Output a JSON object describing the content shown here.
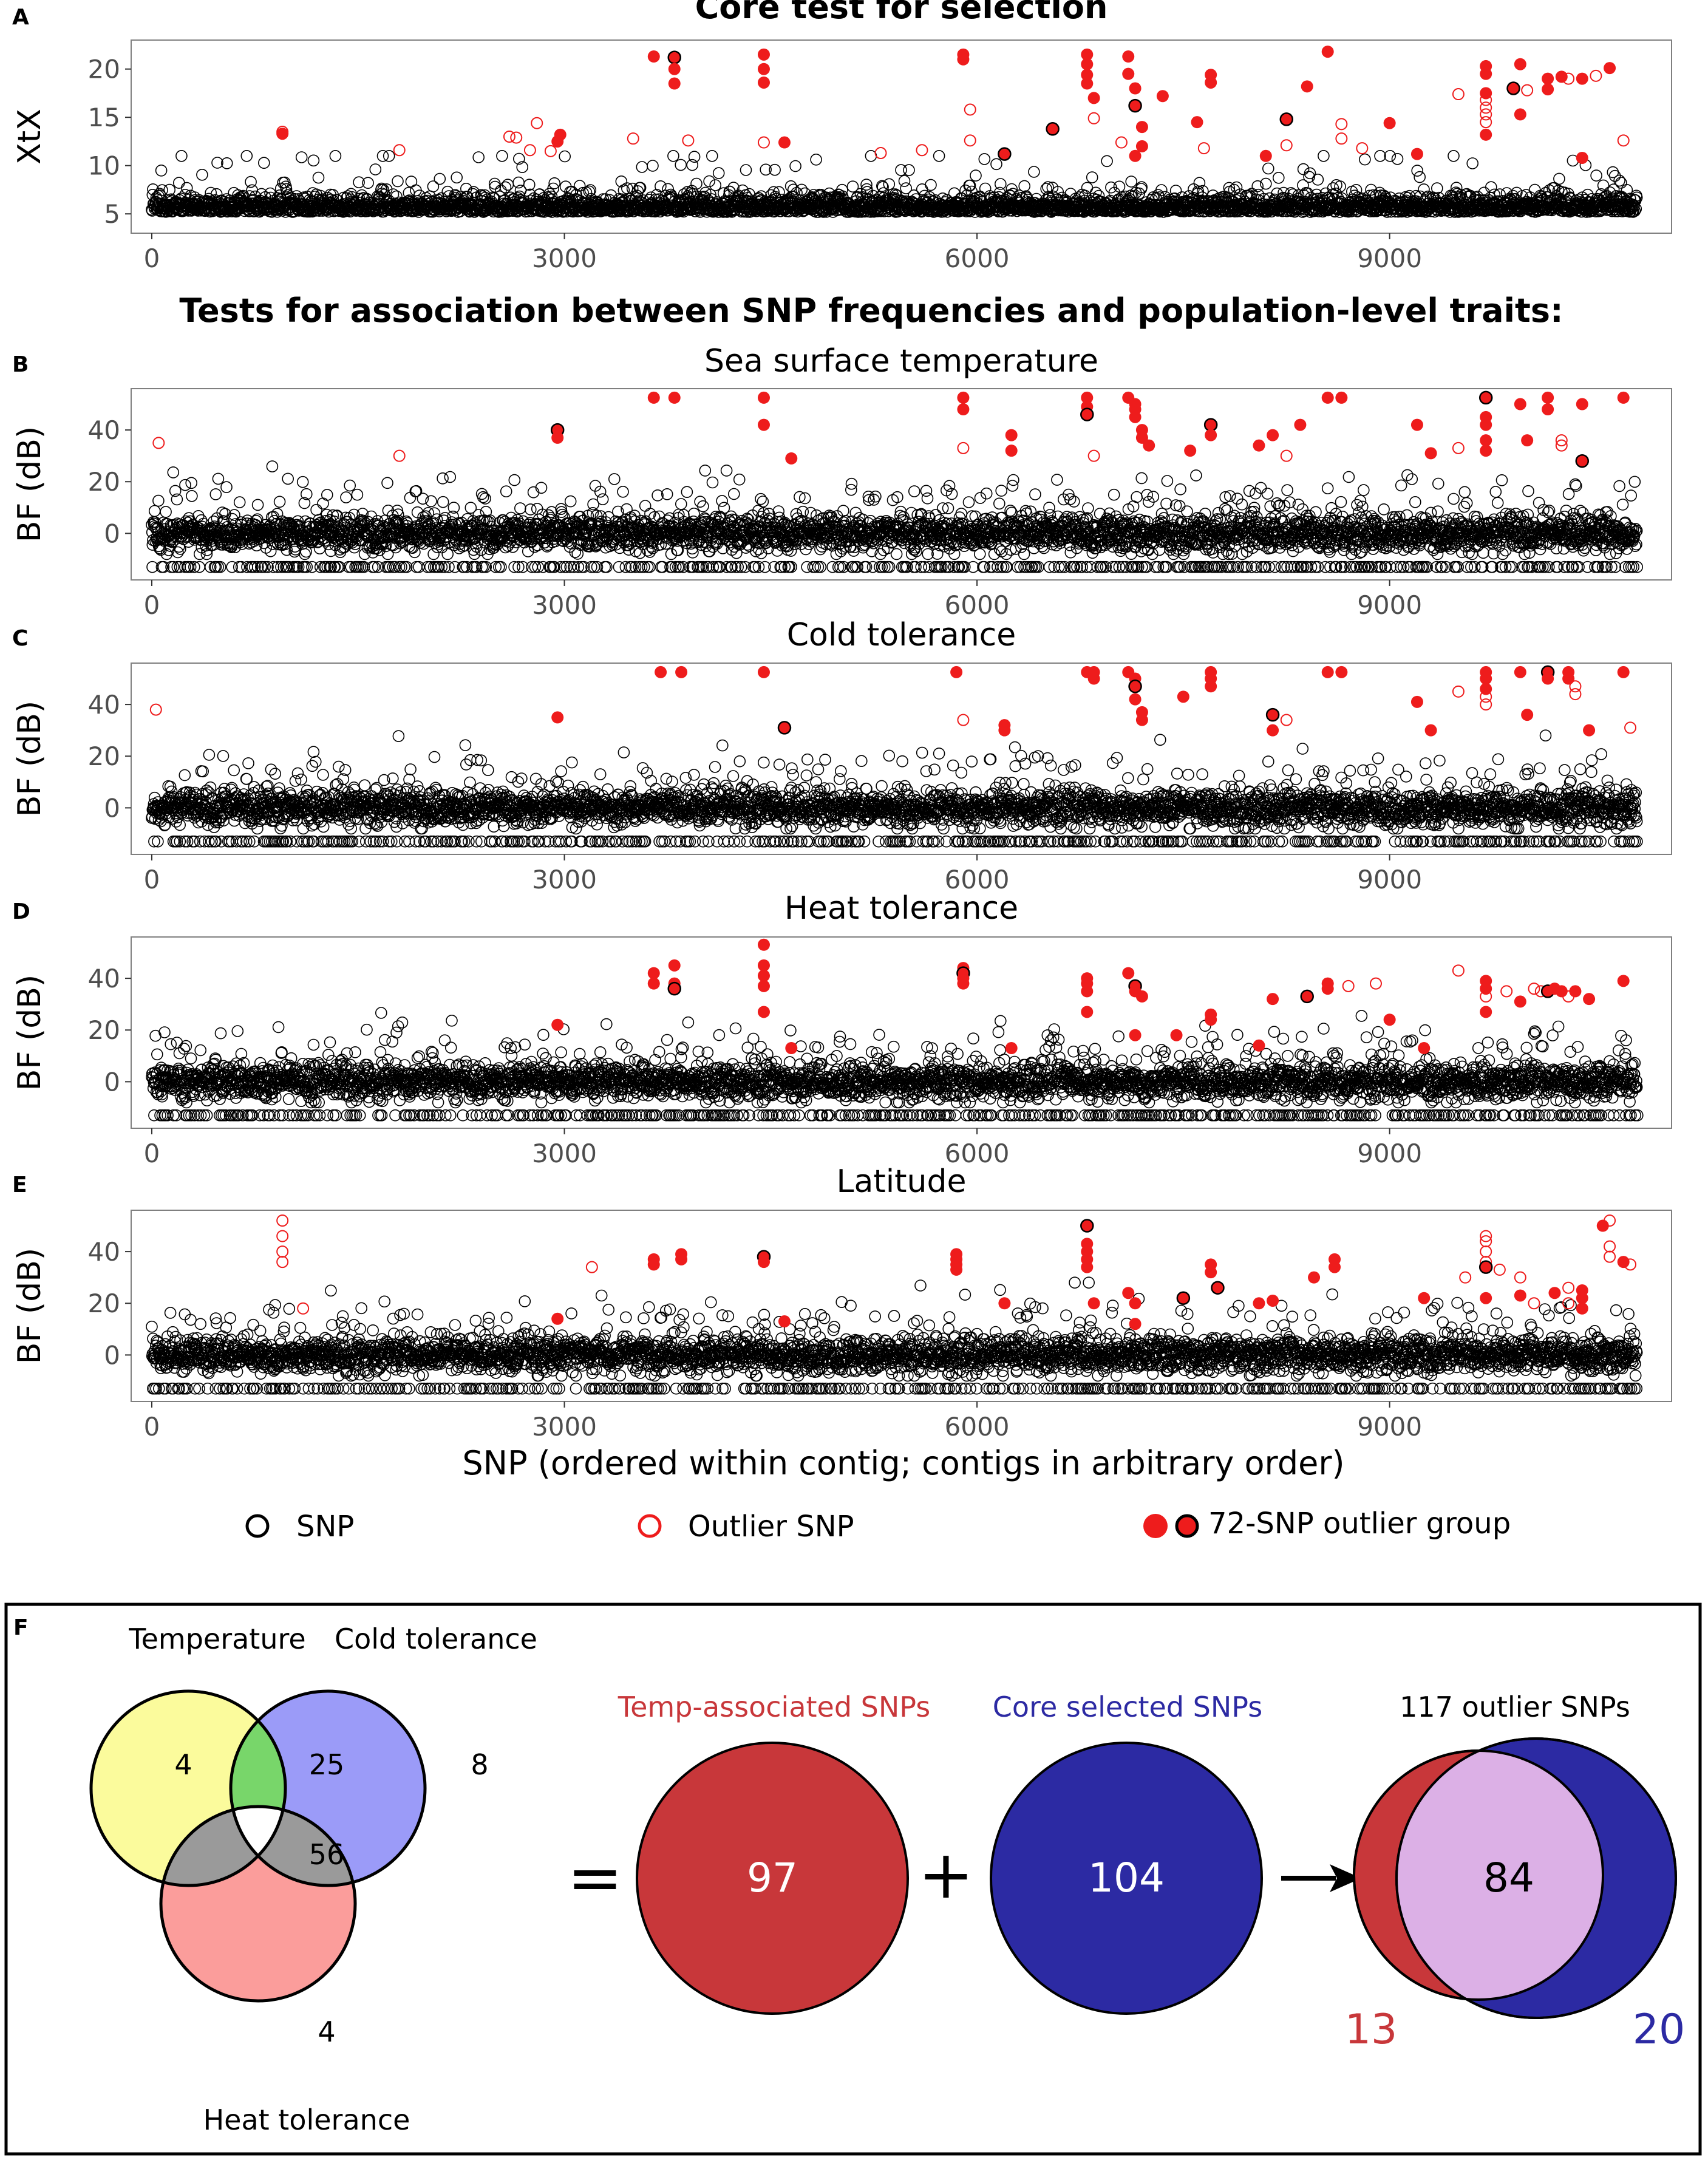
{
  "colors": {
    "outlier": "#ee1c1c",
    "snp": "#000000",
    "temp_red": "#c8373a",
    "core_blue": "#2c2aa3",
    "venn_yellow": "#fbfb9c",
    "venn_blue": "#9b9bf8",
    "venn_red": "#fb9d9b",
    "venn_green": "#78d66a",
    "venn_gray": "#9a9a9a",
    "lilac": "#dcb0e6"
  },
  "section_header": "Tests for association between SNP frequencies and population-level traits:",
  "x_axis_label": "SNP (ordered within contig; contigs in arbitrary order)",
  "legend": {
    "snp": "SNP",
    "outlier": "Outlier SNP",
    "group": "72-SNP outlier group"
  },
  "chart_data": [
    {
      "panel": "A",
      "type": "scatter",
      "title": "Core test for selection",
      "ylabel": "XtX",
      "xlim": [
        -150,
        11050
      ],
      "ylim": [
        3,
        23
      ],
      "xticks": [
        0,
        3000,
        6000,
        9000
      ],
      "yticks": [
        5,
        10,
        15,
        20
      ],
      "n_snps": 10800,
      "baseline": 5.5,
      "noise": 1.1,
      "outliers_filled": [
        [
          950,
          13.3
        ],
        [
          2970,
          13.2
        ],
        [
          2950,
          12.5
        ],
        [
          3650,
          21.3
        ],
        [
          3800,
          21.2
        ],
        [
          3800,
          20
        ],
        [
          3800,
          18.5
        ],
        [
          4450,
          21.5
        ],
        [
          4450,
          20
        ],
        [
          4450,
          18.6
        ],
        [
          4600,
          12.4
        ],
        [
          5900,
          21.5
        ],
        [
          5900,
          21
        ],
        [
          6200,
          11.2
        ],
        [
          6800,
          21.5
        ],
        [
          6800,
          20.5
        ],
        [
          6800,
          19.4
        ],
        [
          6800,
          18.5
        ],
        [
          6850,
          17
        ],
        [
          7100,
          21.3
        ],
        [
          7100,
          19.5
        ],
        [
          7150,
          18
        ],
        [
          7150,
          16.2
        ],
        [
          7200,
          14
        ],
        [
          7200,
          12
        ],
        [
          7150,
          11
        ],
        [
          7350,
          17.2
        ],
        [
          7600,
          14.5
        ],
        [
          7700,
          19.4
        ],
        [
          7700,
          18.6
        ],
        [
          8100,
          11
        ],
        [
          8250,
          14.8
        ],
        [
          8400,
          18.2
        ],
        [
          8550,
          21.8
        ],
        [
          9000,
          14.4
        ],
        [
          9200,
          11.2
        ],
        [
          9700,
          20.3
        ],
        [
          9700,
          19.5
        ],
        [
          9700,
          17.5
        ],
        [
          9700,
          13.2
        ],
        [
          9900,
          18
        ],
        [
          9950,
          15.3
        ],
        [
          9950,
          20.5
        ],
        [
          10150,
          19
        ],
        [
          10150,
          17.9
        ],
        [
          10250,
          19.2
        ],
        [
          10400,
          19
        ],
        [
          10600,
          20.1
        ],
        [
          10400,
          10.8
        ],
        [
          6550,
          13.8
        ]
      ],
      "outliers_open": [
        [
          950,
          13.5
        ],
        [
          1800,
          11.6
        ],
        [
          2600,
          13
        ],
        [
          2650,
          12.9
        ],
        [
          2750,
          11.6
        ],
        [
          2800,
          14.4
        ],
        [
          2900,
          11.5
        ],
        [
          3500,
          12.8
        ],
        [
          3900,
          12.6
        ],
        [
          4450,
          12.4
        ],
        [
          5300,
          11.3
        ],
        [
          5600,
          11.6
        ],
        [
          5950,
          15.8
        ],
        [
          5950,
          12.6
        ],
        [
          6850,
          14.9
        ],
        [
          7050,
          12.4
        ],
        [
          7650,
          11.8
        ],
        [
          8250,
          12.1
        ],
        [
          8650,
          14.3
        ],
        [
          8650,
          12.8
        ],
        [
          8800,
          11.8
        ],
        [
          9500,
          17.4
        ],
        [
          9700,
          16.8
        ],
        [
          9700,
          16
        ],
        [
          9700,
          15.3
        ],
        [
          9700,
          14.5
        ],
        [
          10000,
          17.8
        ],
        [
          10300,
          19
        ],
        [
          10500,
          19.3
        ],
        [
          10700,
          12.6
        ]
      ]
    },
    {
      "panel": "B",
      "type": "scatter",
      "title": "Sea surface temperature",
      "ylabel": "BF (dB)",
      "xlim": [
        -150,
        11050
      ],
      "ylim": [
        -18,
        56
      ],
      "xticks": [
        0,
        3000,
        6000,
        9000
      ],
      "yticks": [
        0,
        20,
        40
      ],
      "n_snps": 10800,
      "baseline": 0,
      "noise": 4,
      "floor": -13,
      "outliers_filled": [
        [
          3650,
          52.5
        ],
        [
          3800,
          52.5
        ],
        [
          4450,
          52.5
        ],
        [
          4450,
          42
        ],
        [
          2950,
          40
        ],
        [
          2950,
          37
        ],
        [
          4650,
          29
        ],
        [
          5900,
          52.5
        ],
        [
          5900,
          48
        ],
        [
          6250,
          38
        ],
        [
          6250,
          32
        ],
        [
          6800,
          52.5
        ],
        [
          6800,
          49
        ],
        [
          6800,
          46
        ],
        [
          7100,
          52.5
        ],
        [
          7150,
          50
        ],
        [
          7150,
          48
        ],
        [
          7150,
          45
        ],
        [
          7200,
          40
        ],
        [
          7200,
          37
        ],
        [
          7250,
          34
        ],
        [
          7550,
          32
        ],
        [
          7700,
          42
        ],
        [
          7700,
          38
        ],
        [
          8050,
          34
        ],
        [
          8150,
          38
        ],
        [
          8350,
          42
        ],
        [
          8550,
          52.5
        ],
        [
          8650,
          52.5
        ],
        [
          9200,
          42
        ],
        [
          9300,
          31
        ],
        [
          9700,
          52.5
        ],
        [
          9700,
          45
        ],
        [
          9700,
          42
        ],
        [
          9700,
          36
        ],
        [
          9700,
          32
        ],
        [
          9950,
          50
        ],
        [
          10150,
          52.5
        ],
        [
          10150,
          48
        ],
        [
          10000,
          36
        ],
        [
          10400,
          28
        ],
        [
          10400,
          50
        ],
        [
          10700,
          52.5
        ]
      ],
      "outliers_open": [
        [
          50,
          35
        ],
        [
          1800,
          30
        ],
        [
          5900,
          33
        ],
        [
          6850,
          30
        ],
        [
          8250,
          30
        ],
        [
          9500,
          33
        ],
        [
          10250,
          34
        ],
        [
          10250,
          36
        ]
      ]
    },
    {
      "panel": "C",
      "type": "scatter",
      "title": "Cold tolerance",
      "ylabel": "BF (dB)",
      "xlim": [
        -150,
        11050
      ],
      "ylim": [
        -18,
        56
      ],
      "xticks": [
        0,
        3000,
        6000,
        9000
      ],
      "yticks": [
        0,
        20,
        40
      ],
      "n_snps": 10800,
      "baseline": 0,
      "noise": 4,
      "floor": -13,
      "outliers_filled": [
        [
          3700,
          52.5
        ],
        [
          3850,
          52.5
        ],
        [
          4450,
          52.5
        ],
        [
          2950,
          35
        ],
        [
          4600,
          31
        ],
        [
          5850,
          52.5
        ],
        [
          6200,
          32
        ],
        [
          6200,
          30
        ],
        [
          6800,
          52.5
        ],
        [
          6850,
          52.5
        ],
        [
          6850,
          50
        ],
        [
          7100,
          52.5
        ],
        [
          7150,
          50
        ],
        [
          7150,
          47
        ],
        [
          7150,
          42
        ],
        [
          7200,
          37
        ],
        [
          7200,
          34
        ],
        [
          7500,
          43
        ],
        [
          7700,
          52.5
        ],
        [
          7700,
          50
        ],
        [
          7700,
          47
        ],
        [
          8150,
          30
        ],
        [
          8150,
          36
        ],
        [
          8550,
          52.5
        ],
        [
          8650,
          52.5
        ],
        [
          9200,
          41
        ],
        [
          9300,
          30
        ],
        [
          9700,
          52.5
        ],
        [
          9700,
          50
        ],
        [
          9700,
          46
        ],
        [
          9950,
          52.5
        ],
        [
          10150,
          52.5
        ],
        [
          10150,
          50
        ],
        [
          10000,
          36
        ],
        [
          10300,
          52.5
        ],
        [
          10300,
          50
        ],
        [
          10450,
          30
        ],
        [
          10700,
          52.5
        ]
      ],
      "outliers_open": [
        [
          30,
          38
        ],
        [
          5900,
          34
        ],
        [
          8250,
          34
        ],
        [
          9500,
          45
        ],
        [
          9700,
          43
        ],
        [
          9700,
          40
        ],
        [
          10350,
          44
        ],
        [
          10350,
          47
        ],
        [
          10750,
          31
        ]
      ]
    },
    {
      "panel": "D",
      "type": "scatter",
      "title": "Heat tolerance",
      "ylabel": "BF (dB)",
      "xlim": [
        -150,
        11050
      ],
      "ylim": [
        -18,
        56
      ],
      "xticks": [
        0,
        3000,
        6000,
        9000
      ],
      "yticks": [
        0,
        20,
        40
      ],
      "n_snps": 10800,
      "baseline": 0,
      "noise": 4,
      "floor": -13,
      "outliers_filled": [
        [
          3650,
          42
        ],
        [
          3650,
          38
        ],
        [
          3800,
          45
        ],
        [
          3800,
          38
        ],
        [
          3800,
          36
        ],
        [
          2950,
          22
        ],
        [
          4450,
          53
        ],
        [
          4450,
          45
        ],
        [
          4450,
          41
        ],
        [
          4450,
          37
        ],
        [
          4450,
          27
        ],
        [
          4650,
          13
        ],
        [
          5900,
          44
        ],
        [
          5900,
          42
        ],
        [
          5900,
          40
        ],
        [
          5900,
          38
        ],
        [
          6250,
          13
        ],
        [
          6800,
          40
        ],
        [
          6800,
          38
        ],
        [
          6800,
          35
        ],
        [
          6800,
          27
        ],
        [
          7100,
          42
        ],
        [
          7150,
          37
        ],
        [
          7150,
          35
        ],
        [
          7200,
          33
        ],
        [
          7150,
          18
        ],
        [
          7450,
          18
        ],
        [
          7700,
          26
        ],
        [
          7700,
          24
        ],
        [
          8050,
          14
        ],
        [
          8150,
          32
        ],
        [
          8400,
          33
        ],
        [
          8550,
          38
        ],
        [
          8550,
          36
        ],
        [
          9000,
          24
        ],
        [
          9250,
          13
        ],
        [
          9700,
          39
        ],
        [
          9700,
          36
        ],
        [
          9700,
          27
        ],
        [
          9950,
          31
        ],
        [
          10150,
          35
        ],
        [
          10200,
          36
        ],
        [
          10250,
          35
        ],
        [
          10350,
          35
        ],
        [
          10450,
          32
        ],
        [
          10700,
          39
        ]
      ],
      "outliers_open": [
        [
          8700,
          37
        ],
        [
          8900,
          38
        ],
        [
          9500,
          43
        ],
        [
          9700,
          33
        ],
        [
          9850,
          35
        ],
        [
          10050,
          36
        ],
        [
          10100,
          35
        ],
        [
          10300,
          33
        ]
      ]
    },
    {
      "panel": "E",
      "type": "scatter",
      "title": "Latitude",
      "ylabel": "BF (dB)",
      "xlim": [
        -150,
        11050
      ],
      "ylim": [
        -18,
        56
      ],
      "xticks": [
        0,
        3000,
        6000,
        9000
      ],
      "yticks": [
        0,
        20,
        40
      ],
      "n_snps": 10800,
      "baseline": 0,
      "noise": 4,
      "floor": -13,
      "outliers_filled": [
        [
          3650,
          37
        ],
        [
          3650,
          35
        ],
        [
          3850,
          39
        ],
        [
          3850,
          37
        ],
        [
          4450,
          38
        ],
        [
          4450,
          36
        ],
        [
          4600,
          13
        ],
        [
          2950,
          14
        ],
        [
          5850,
          39
        ],
        [
          5850,
          37
        ],
        [
          5850,
          35
        ],
        [
          5850,
          33
        ],
        [
          6200,
          20
        ],
        [
          6800,
          50
        ],
        [
          6800,
          43
        ],
        [
          6800,
          40
        ],
        [
          6800,
          37
        ],
        [
          6800,
          34
        ],
        [
          6850,
          20
        ],
        [
          7100,
          24
        ],
        [
          7150,
          20
        ],
        [
          7150,
          12
        ],
        [
          7500,
          22
        ],
        [
          7700,
          35
        ],
        [
          7700,
          32
        ],
        [
          8050,
          20
        ],
        [
          8150,
          21
        ],
        [
          8450,
          30
        ],
        [
          8600,
          37
        ],
        [
          8600,
          34
        ],
        [
          9250,
          22
        ],
        [
          9700,
          34
        ],
        [
          9700,
          22
        ],
        [
          9950,
          23
        ],
        [
          10200,
          24
        ],
        [
          10400,
          18
        ],
        [
          10400,
          25
        ],
        [
          10400,
          22
        ],
        [
          10550,
          50
        ],
        [
          10700,
          36
        ],
        [
          7750,
          26
        ]
      ],
      "outliers_open": [
        [
          950,
          52
        ],
        [
          950,
          46
        ],
        [
          950,
          40
        ],
        [
          950,
          36
        ],
        [
          1100,
          18
        ],
        [
          3200,
          34
        ],
        [
          9550,
          30
        ],
        [
          9700,
          46
        ],
        [
          9700,
          44
        ],
        [
          9700,
          40
        ],
        [
          9700,
          36
        ],
        [
          9800,
          33
        ],
        [
          9950,
          30
        ],
        [
          10050,
          20
        ],
        [
          10300,
          26
        ],
        [
          10300,
          20
        ],
        [
          10600,
          52
        ],
        [
          10600,
          42
        ],
        [
          10600,
          38
        ],
        [
          10750,
          35
        ]
      ]
    }
  ],
  "venn3": {
    "label_temp": "Temperature",
    "label_cold": "Cold tolerance",
    "label_heat": "Heat tolerance",
    "only_temp": "4",
    "only_cold": "8",
    "only_heat": "4",
    "temp_cold": "25",
    "center": "56"
  },
  "eq": "=",
  "plus": "+",
  "circle_temp": {
    "title": "Temp-associated SNPs",
    "value": "97"
  },
  "circle_core": {
    "title": "Core selected SNPs",
    "value": "104"
  },
  "venn2": {
    "title": "117 outlier SNPs",
    "center": "84",
    "left": "13",
    "right": "20"
  },
  "panel_letters": {
    "a": "A",
    "b": "B",
    "c": "C",
    "d": "D",
    "e": "E",
    "f": "F"
  }
}
